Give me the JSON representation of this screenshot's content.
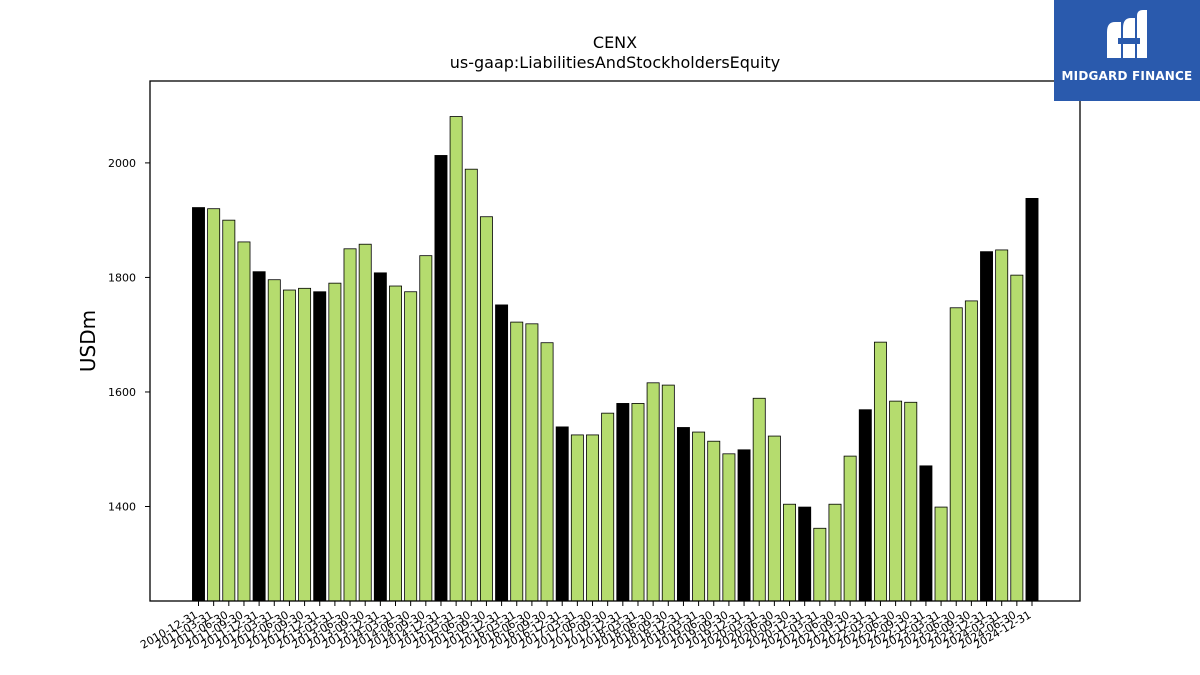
{
  "logo": {
    "text": "MIDGARD FINANCE",
    "bg_color": "#2a5aad"
  },
  "colors": {
    "regular": "#b5dc6e",
    "year_end": "#000000",
    "edge": "#000000"
  },
  "chart_data": {
    "type": "bar",
    "title": "CENX",
    "subtitle": "us-gaap:LiabilitiesAndStockholdersEquity",
    "ylabel": "USDm",
    "xlabel": "",
    "ylim": [
      1235,
      2143
    ],
    "yticks": [
      1400,
      1600,
      1800,
      2000
    ],
    "grid": false,
    "categories": [
      "2010-12-31",
      "2011-03-31",
      "2011-06-30",
      "2011-09-30",
      "2011-12-31",
      "2012-03-31",
      "2012-06-30",
      "2012-09-30",
      "2012-12-31",
      "2013-03-31",
      "2013-06-30",
      "2013-09-30",
      "2013-12-31",
      "2014-03-31",
      "2014-06-30",
      "2014-09-30",
      "2014-12-31",
      "2015-03-31",
      "2015-06-30",
      "2015-09-30",
      "2015-12-31",
      "2016-03-31",
      "2016-06-30",
      "2016-09-30",
      "2016-12-31",
      "2017-03-31",
      "2017-06-30",
      "2017-09-30",
      "2017-12-31",
      "2018-03-31",
      "2018-06-30",
      "2018-09-30",
      "2018-12-31",
      "2019-03-31",
      "2019-06-30",
      "2019-09-30",
      "2019-12-31",
      "2020-03-31",
      "2020-06-30",
      "2020-09-30",
      "2020-12-31",
      "2021-03-31",
      "2021-06-30",
      "2021-09-30",
      "2021-12-31",
      "2022-03-31",
      "2022-06-30",
      "2022-09-30",
      "2022-12-31",
      "2023-03-31",
      "2023-06-30",
      "2023-09-30",
      "2023-12-31",
      "2024-03-31",
      "2024-06-30",
      "2024-12-31"
    ],
    "values": [
      1922,
      1920,
      1900,
      1862,
      1810,
      1796,
      1778,
      1781,
      1775,
      1790,
      1850,
      1858,
      1808,
      1785,
      1775,
      1838,
      2013,
      2081,
      1989,
      1906,
      1752,
      1722,
      1719,
      1686,
      1539,
      1525,
      1525,
      1563,
      1580,
      1580,
      1616,
      1612,
      1538,
      1530,
      1514,
      1492,
      1499,
      1589,
      1523,
      1404,
      1399,
      1362,
      1404,
      1488,
      1569,
      1687,
      1584,
      1582,
      1471,
      1399,
      1747,
      1759,
      1845,
      1848,
      1804,
      1938
    ],
    "highlight": [
      true,
      false,
      false,
      false,
      true,
      false,
      false,
      false,
      true,
      false,
      false,
      false,
      true,
      false,
      false,
      false,
      true,
      false,
      false,
      false,
      true,
      false,
      false,
      false,
      true,
      false,
      false,
      false,
      true,
      false,
      false,
      false,
      true,
      false,
      false,
      false,
      true,
      false,
      false,
      false,
      true,
      false,
      false,
      false,
      true,
      false,
      false,
      false,
      true,
      false,
      false,
      false,
      true,
      false,
      false,
      true
    ]
  }
}
